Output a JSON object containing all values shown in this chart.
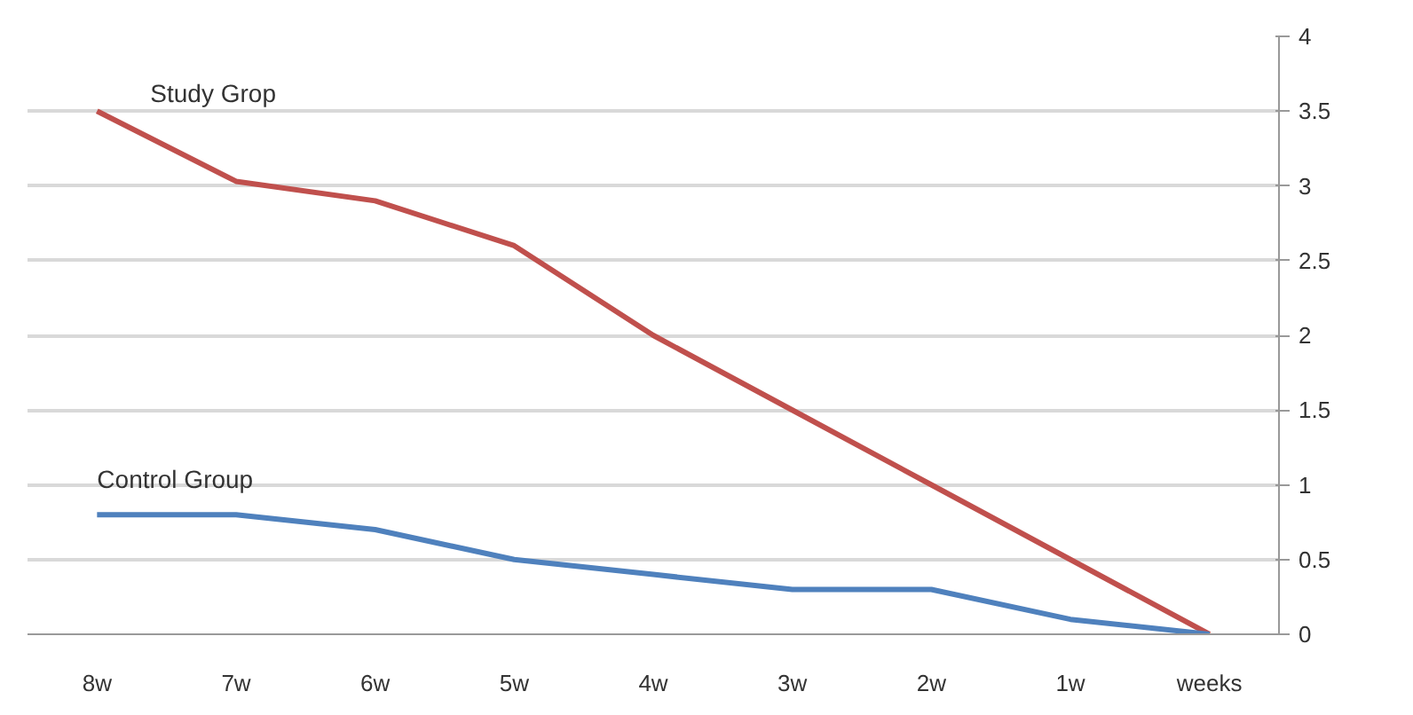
{
  "chart_data": {
    "type": "line",
    "categories": [
      "8w",
      "7w",
      "6w",
      "5w",
      "4w",
      "3w",
      "2w",
      "1w",
      "weeks"
    ],
    "series": [
      {
        "name": "Study Grop",
        "color": "#c0504d",
        "values": [
          3.5,
          3.03,
          2.9,
          2.6,
          2.0,
          1.5,
          1.0,
          0.5,
          0
        ]
      },
      {
        "name": "Control Group",
        "color": "#4f81bd",
        "values": [
          0.8,
          0.8,
          0.7,
          0.5,
          0.4,
          0.3,
          0.3,
          0.1,
          0
        ]
      }
    ],
    "ylim": [
      0,
      4
    ],
    "yticks": [
      0,
      0.5,
      1,
      1.5,
      2,
      2.5,
      3,
      3.5,
      4
    ],
    "grid": "y",
    "legend": false,
    "marker": "none",
    "line_style": "solid"
  }
}
